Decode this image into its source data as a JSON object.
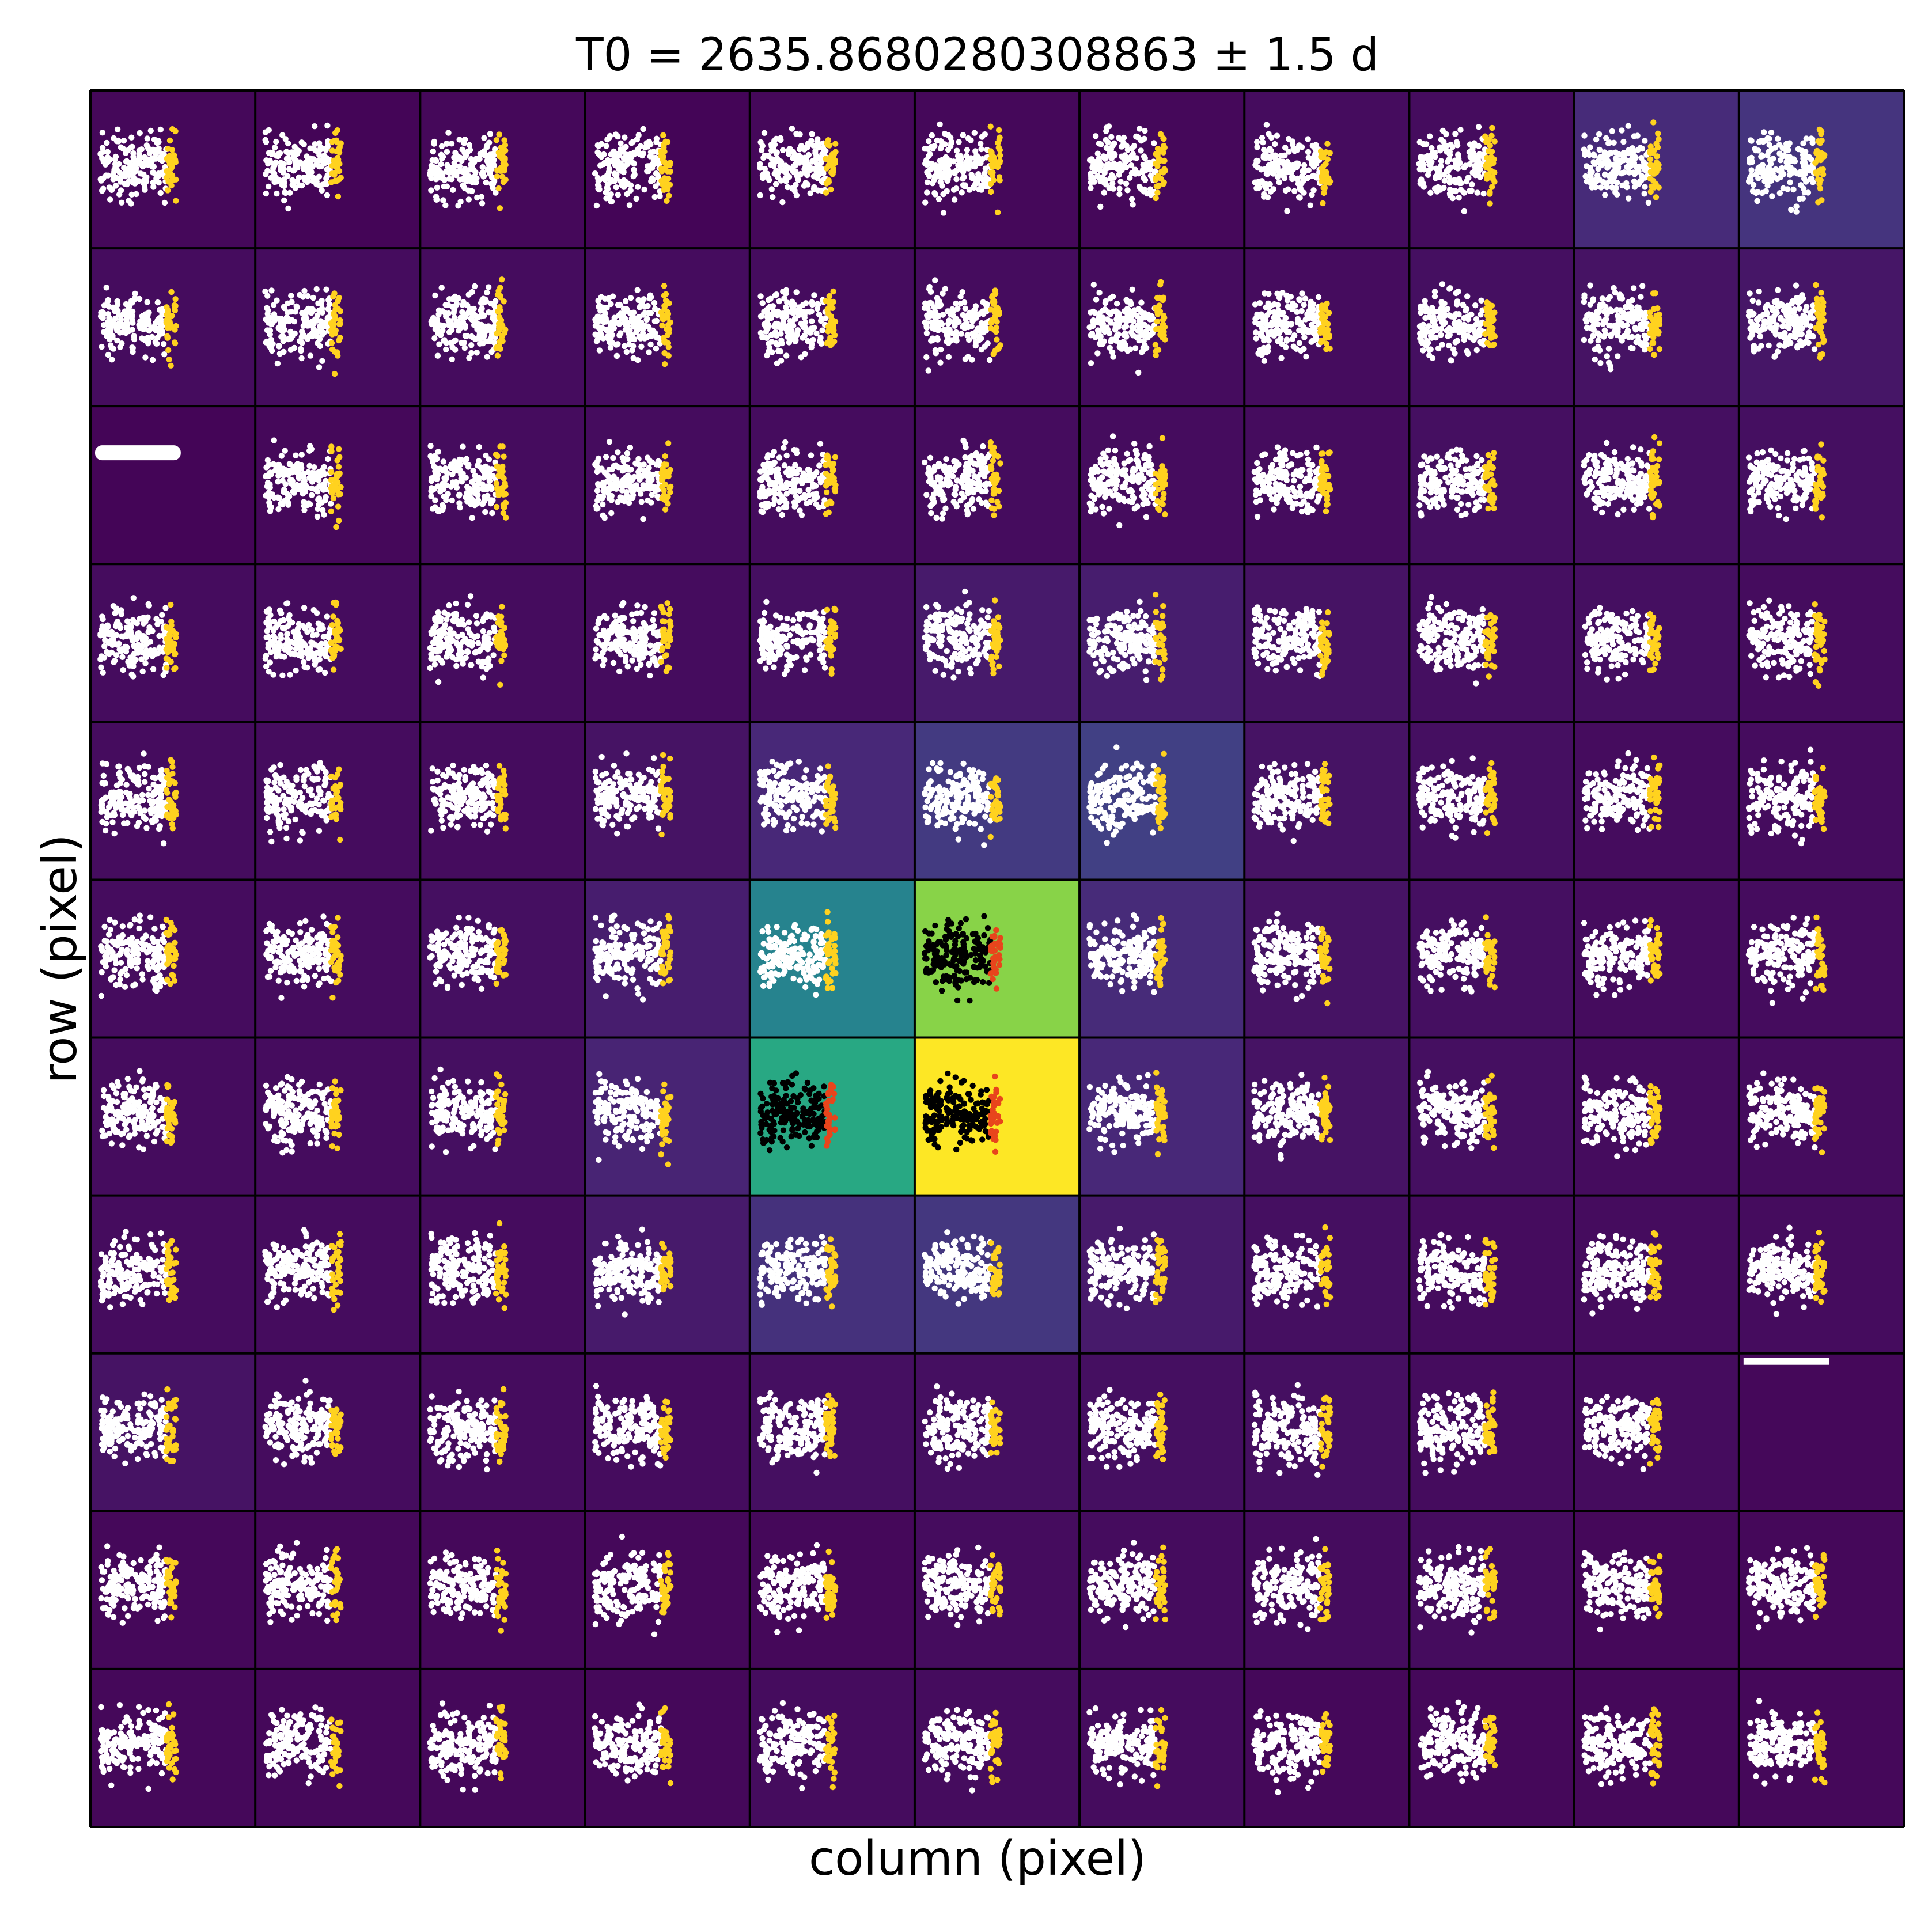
{
  "chart_data": {
    "type": "heatmap",
    "title": "T0 = 2635.8680280308863 ± 1.5 d",
    "xlabel": "column (pixel)",
    "ylabel": "row (pixel)",
    "grid_rows": 11,
    "grid_cols": 11,
    "colormap": "viridis",
    "relative_flux": [
      [
        0.02,
        0.01,
        0.02,
        0.01,
        0.02,
        0.02,
        0.02,
        0.03,
        0.03,
        0.12,
        0.15
      ],
      [
        0.03,
        0.03,
        0.03,
        0.03,
        0.03,
        0.03,
        0.03,
        0.03,
        0.04,
        0.05,
        0.06
      ],
      [
        0.01,
        0.02,
        0.03,
        0.03,
        0.03,
        0.03,
        0.03,
        0.03,
        0.04,
        0.04,
        0.04
      ],
      [
        0.03,
        0.03,
        0.03,
        0.03,
        0.04,
        0.07,
        0.08,
        0.05,
        0.04,
        0.04,
        0.03
      ],
      [
        0.03,
        0.03,
        0.03,
        0.05,
        0.11,
        0.17,
        0.19,
        0.05,
        0.04,
        0.03,
        0.03
      ],
      [
        0.03,
        0.03,
        0.04,
        0.08,
        0.45,
        0.82,
        0.12,
        0.05,
        0.04,
        0.03,
        0.03
      ],
      [
        0.03,
        0.03,
        0.04,
        0.1,
        0.6,
        1.0,
        0.11,
        0.05,
        0.04,
        0.03,
        0.03
      ],
      [
        0.03,
        0.03,
        0.03,
        0.07,
        0.14,
        0.16,
        0.07,
        0.04,
        0.03,
        0.03,
        0.03
      ],
      [
        0.05,
        0.03,
        0.03,
        0.03,
        0.04,
        0.04,
        0.04,
        0.04,
        0.03,
        0.03,
        0.02
      ],
      [
        0.02,
        0.02,
        0.02,
        0.02,
        0.02,
        0.03,
        0.03,
        0.03,
        0.03,
        0.02,
        0.02
      ],
      [
        0.02,
        0.02,
        0.02,
        0.02,
        0.03,
        0.03,
        0.03,
        0.02,
        0.02,
        0.02,
        0.02
      ]
    ],
    "aperture_pixels": [
      [
        5,
        5
      ],
      [
        6,
        4
      ],
      [
        6,
        5
      ]
    ],
    "colors": {
      "out_of_transit_outside_aperture": "#ffffff",
      "in_transit_outside_aperture": "#ffd21f",
      "out_of_transit_in_aperture": "#000000",
      "in_transit_in_aperture": "#e8451c",
      "cell_border": "#000000"
    },
    "grid": false,
    "legend": "none",
    "ticks": "none"
  }
}
